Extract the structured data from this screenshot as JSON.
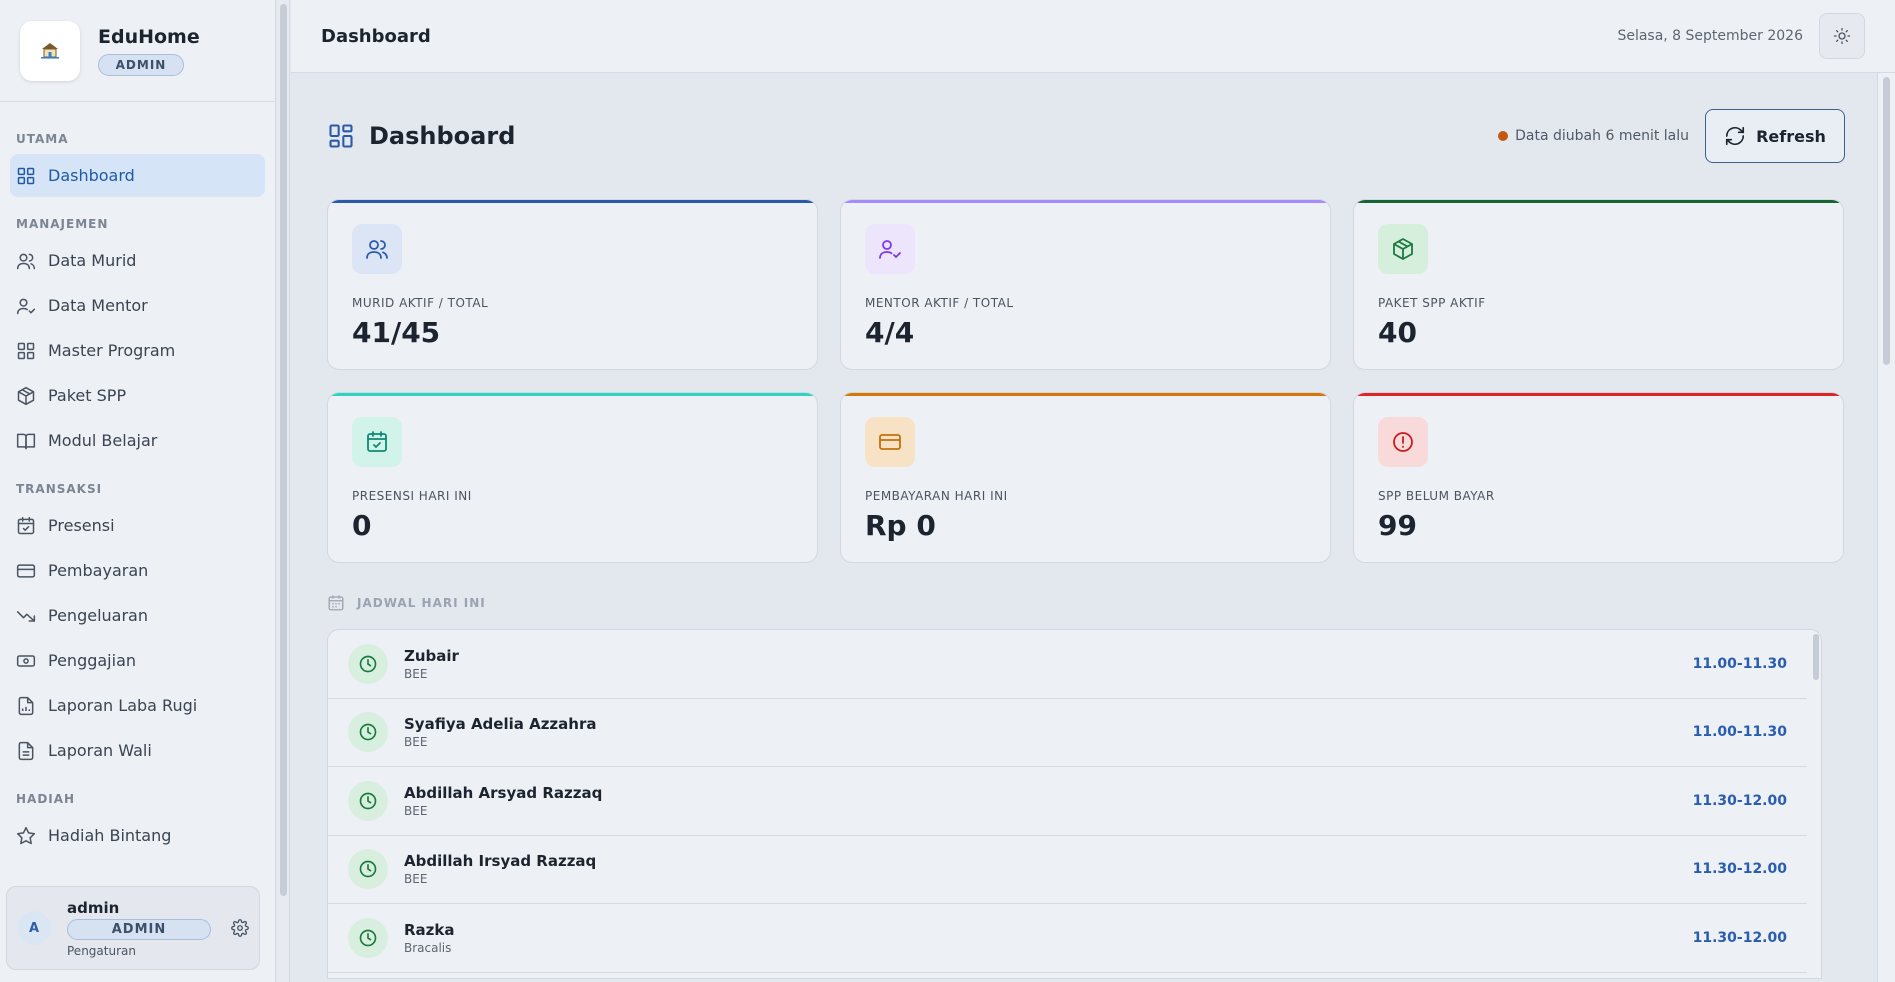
{
  "brand": {
    "name": "EduHome",
    "role": "ADMIN"
  },
  "sidebar": {
    "sections": [
      {
        "label": "UTAMA",
        "items": [
          {
            "label": "Dashboard",
            "icon": "grid-icon",
            "active": true
          }
        ]
      },
      {
        "label": "MANAJEMEN",
        "items": [
          {
            "label": "Data Murid",
            "icon": "users-icon"
          },
          {
            "label": "Data Mentor",
            "icon": "user-check-icon"
          },
          {
            "label": "Master Program",
            "icon": "grid-icon"
          },
          {
            "label": "Paket SPP",
            "icon": "package-icon"
          },
          {
            "label": "Modul Belajar",
            "icon": "book-icon"
          }
        ]
      },
      {
        "label": "TRANSAKSI",
        "items": [
          {
            "label": "Presensi",
            "icon": "calendar-check-icon"
          },
          {
            "label": "Pembayaran",
            "icon": "credit-card-icon"
          },
          {
            "label": "Pengeluaran",
            "icon": "trending-down-icon"
          },
          {
            "label": "Penggajian",
            "icon": "banknote-icon"
          },
          {
            "label": "Laporan Laba Rugi",
            "icon": "report-icon"
          },
          {
            "label": "Laporan Wali",
            "icon": "file-icon"
          }
        ]
      },
      {
        "label": "HADIAH",
        "items": [
          {
            "label": "Hadiah Bintang",
            "icon": "star-icon"
          }
        ]
      }
    ],
    "user": {
      "initial": "A",
      "name": "admin",
      "role": "ADMIN",
      "settings_label": "Pengaturan"
    }
  },
  "topbar": {
    "title": "Dashboard",
    "date": "Selasa, 8 September 2026"
  },
  "page": {
    "title": "Dashboard",
    "status_text": "Data diubah 6 menit lalu",
    "refresh_label": "Refresh"
  },
  "stats": [
    {
      "label": "MURID AKTIF / TOTAL",
      "value": "41/45",
      "icon": "users-icon",
      "accent": "#2b5aa8",
      "icon_bg": "#dbe5f6",
      "icon_color": "#2b5aa8"
    },
    {
      "label": "MENTOR AKTIF / TOTAL",
      "value": "4/4",
      "icon": "user-check-icon",
      "accent": "#a78bfa",
      "icon_bg": "#ede5fb",
      "icon_color": "#7c3aed"
    },
    {
      "label": "PAKET SPP AKTIF",
      "value": "40",
      "icon": "package-icon",
      "accent": "#166534",
      "icon_bg": "#d6efdd",
      "icon_color": "#1b7a3e"
    },
    {
      "label": "PRESENSI HARI INI",
      "value": "0",
      "icon": "calendar-check-icon",
      "accent": "#2dd4bf",
      "icon_bg": "#d2f3ea",
      "icon_color": "#0f8a76"
    },
    {
      "label": "PEMBAYARAN HARI INI",
      "value": "Rp 0",
      "icon": "credit-card-icon",
      "accent": "#d97706",
      "icon_bg": "#f8e2c5",
      "icon_color": "#c2710c"
    },
    {
      "label": "SPP BELUM BAYAR",
      "value": "99",
      "icon": "alert-circle-icon",
      "accent": "#dc2626",
      "icon_bg": "#f8dada",
      "icon_color": "#c81e1e"
    }
  ],
  "schedule": {
    "title": "JADWAL HARI INI",
    "rows": [
      {
        "name": "Zubair",
        "program": "BEE",
        "time": "11.00-11.30"
      },
      {
        "name": "Syafiya Adelia Azzahra",
        "program": "BEE",
        "time": "11.00-11.30"
      },
      {
        "name": "Abdillah Arsyad Razzaq",
        "program": "BEE",
        "time": "11.30-12.00"
      },
      {
        "name": "Abdillah Irsyad Razzaq",
        "program": "BEE",
        "time": "11.30-12.00"
      },
      {
        "name": "Razka",
        "program": "Bracalis",
        "time": "11.30-12.00"
      }
    ]
  }
}
